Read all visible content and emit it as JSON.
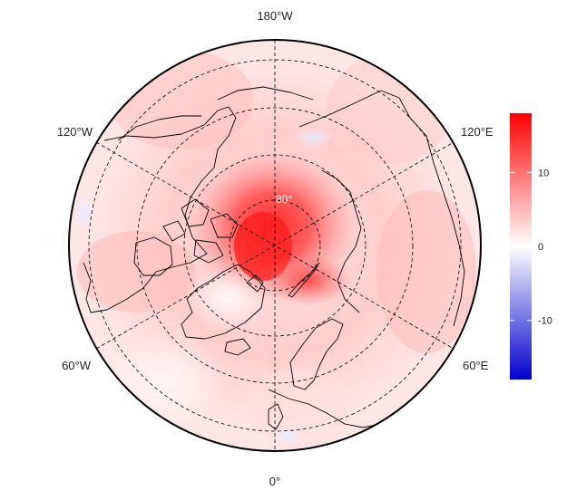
{
  "map": {
    "projection": "north polar stereographic",
    "longitude_labels": {
      "top": "180°W",
      "upper_right": "120°E",
      "lower_right": "60°E",
      "bottom": "0°",
      "lower_left": "60°W",
      "upper_left": "120°W"
    },
    "latitude_label": "80°",
    "gridlines": "dashed",
    "colors": {
      "ocean_background": "#ffe9e9",
      "strong_anomaly": "#ff2a2a",
      "coastline": "#000000"
    }
  },
  "colorbar": {
    "ticks": [
      "10",
      "0",
      "-10"
    ],
    "tick_values": [
      10,
      0,
      -10
    ],
    "min": -18,
    "max": 18,
    "colors": {
      "max": "#ff0000",
      "mid": "#ffffff",
      "min": "#0000cc"
    }
  }
}
